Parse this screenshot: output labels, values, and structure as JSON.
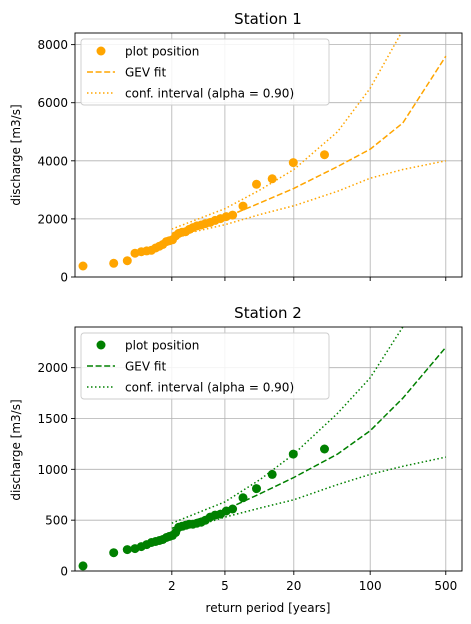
{
  "x_label": "return period [years]",
  "x_ticks": [
    {
      "label": "2",
      "value": 2
    },
    {
      "label": "5",
      "value": 5
    },
    {
      "label": "20",
      "value": 20
    },
    {
      "label": "100",
      "value": 100
    },
    {
      "label": "500",
      "value": 500
    }
  ],
  "colors": {
    "station1": "#ffa500",
    "station2": "#008000",
    "grid": "#b0b0b0",
    "axis": "#000000"
  },
  "chart_data": [
    {
      "type": "scatter",
      "title": "Station 1",
      "xlabel": "",
      "ylabel": "discharge [m3/s]",
      "ylim": [
        0,
        8400
      ],
      "y_ticks": [
        0,
        2000,
        4000,
        6000,
        8000
      ],
      "grid": true,
      "legend_position": "upper-left",
      "legend": [
        "plot position",
        "GEV fit",
        "conf. interval (alpha = 0.90)"
      ],
      "observed": {
        "name": "plot position",
        "return_period": [
          1.01,
          1.1,
          1.2,
          1.28,
          1.36,
          1.44,
          1.52,
          1.6,
          1.68,
          1.76,
          1.85,
          1.93,
          2.02,
          2.12,
          2.22,
          2.34,
          2.48,
          2.63,
          2.8,
          3.0,
          3.23,
          3.48,
          3.8,
          4.16,
          4.6,
          5.13,
          5.8,
          7.1,
          9.3,
          12.8,
          19.8,
          38
        ],
        "discharge": [
          380,
          470,
          560,
          820,
          870,
          900,
          920,
          1000,
          1060,
          1120,
          1220,
          1250,
          1280,
          1420,
          1500,
          1540,
          1560,
          1640,
          1700,
          1760,
          1790,
          1840,
          1880,
          1950,
          2010,
          2080,
          2130,
          2440,
          3190,
          3380,
          3940,
          4210
        ]
      },
      "fit": {
        "name": "GEV fit",
        "return_period": [
          2,
          5,
          10,
          20,
          50,
          100,
          200,
          500
        ],
        "discharge": [
          1500,
          2050,
          2550,
          3050,
          3800,
          4400,
          5300,
          7600
        ]
      },
      "ci_upper": {
        "name": "conf. interval (alpha = 0.90)",
        "return_period": [
          2,
          5,
          10,
          20,
          50,
          100,
          200,
          500
        ],
        "discharge": [
          1650,
          2350,
          3000,
          3700,
          5000,
          6500,
          8500,
          11000
        ]
      },
      "ci_lower": {
        "name": "conf. interval (alpha = 0.90)",
        "return_period": [
          2,
          5,
          10,
          20,
          50,
          100,
          200,
          500
        ],
        "discharge": [
          1380,
          1800,
          2150,
          2450,
          2950,
          3400,
          3700,
          4000
        ]
      }
    },
    {
      "type": "scatter",
      "title": "Station 2",
      "xlabel": "return period [years]",
      "ylabel": "discharge [m3/s]",
      "ylim": [
        0,
        2400
      ],
      "y_ticks": [
        0,
        500,
        1000,
        1500,
        2000
      ],
      "grid": true,
      "legend_position": "upper-left",
      "legend": [
        "plot position",
        "GEV fit",
        "conf. interval (alpha = 0.90)"
      ],
      "observed": {
        "name": "plot position",
        "return_period": [
          1.01,
          1.1,
          1.2,
          1.28,
          1.36,
          1.44,
          1.52,
          1.6,
          1.68,
          1.76,
          1.85,
          1.93,
          2.02,
          2.12,
          2.22,
          2.34,
          2.48,
          2.63,
          2.8,
          3.0,
          3.23,
          3.48,
          3.8,
          4.16,
          4.6,
          5.13,
          5.8,
          7.1,
          9.3,
          12.8,
          19.8,
          38
        ],
        "discharge": [
          50,
          180,
          210,
          220,
          240,
          260,
          280,
          290,
          300,
          310,
          330,
          340,
          350,
          380,
          430,
          440,
          450,
          460,
          460,
          470,
          480,
          500,
          530,
          550,
          560,
          590,
          610,
          720,
          810,
          950,
          1150,
          1200
        ]
      },
      "fit": {
        "name": "GEV fit",
        "return_period": [
          2,
          5,
          10,
          20,
          50,
          100,
          200,
          500
        ],
        "discharge": [
          420,
          600,
          760,
          920,
          1150,
          1380,
          1700,
          2200
        ]
      },
      "ci_upper": {
        "name": "conf. interval (alpha = 0.90)",
        "return_period": [
          2,
          5,
          10,
          20,
          50,
          100,
          200,
          500
        ],
        "discharge": [
          470,
          680,
          900,
          1150,
          1550,
          1900,
          2400,
          3000
        ]
      },
      "ci_lower": {
        "name": "conf. interval (alpha = 0.90)",
        "return_period": [
          2,
          5,
          10,
          20,
          50,
          100,
          200,
          500
        ],
        "discharge": [
          370,
          530,
          620,
          700,
          850,
          950,
          1030,
          1120
        ]
      }
    }
  ]
}
